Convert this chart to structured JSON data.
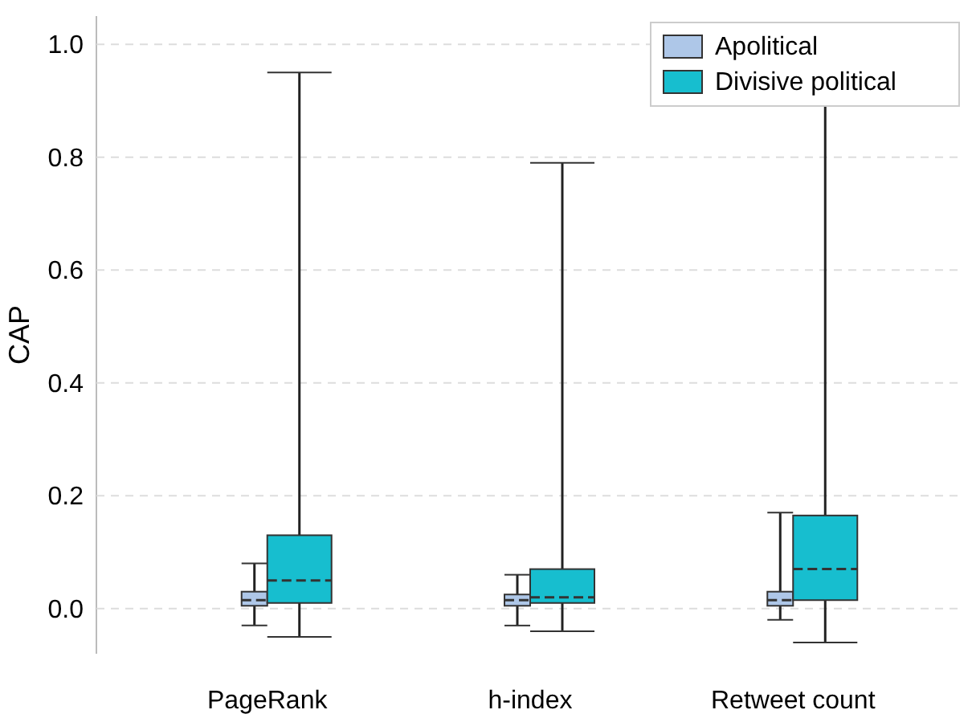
{
  "chart_data": {
    "type": "box",
    "ylabel": "CAP",
    "categories": [
      "PageRank",
      "h-index",
      "Retweet count"
    ],
    "ylim": [
      -0.08,
      1.05
    ],
    "yticks": [
      {
        "value": 0,
        "label": "0.0"
      },
      {
        "value": 0.2,
        "label": "0.2"
      },
      {
        "value": 0.4,
        "label": "0.4"
      },
      {
        "value": 0.6,
        "label": "0.6"
      },
      {
        "value": 0.8,
        "label": "0.8"
      },
      {
        "value": 1,
        "label": "1.0"
      }
    ],
    "grid": "y",
    "legend": "top right",
    "series": [
      {
        "name": "Apolitical",
        "color": "#aec7e8",
        "boxes": [
          {
            "low": -0.03,
            "q1": 0.005,
            "median": 0.015,
            "q3": 0.03,
            "high": 0.08
          },
          {
            "low": -0.03,
            "q1": 0.005,
            "median": 0.015,
            "q3": 0.025,
            "high": 0.06
          },
          {
            "low": -0.02,
            "q1": 0.005,
            "median": 0.015,
            "q3": 0.03,
            "high": 0.17
          }
        ]
      },
      {
        "name": "Divisive political",
        "color": "#17becf",
        "boxes": [
          {
            "low": -0.05,
            "q1": 0.01,
            "median": 0.05,
            "q3": 0.13,
            "high": 0.95
          },
          {
            "low": -0.04,
            "q1": 0.01,
            "median": 0.02,
            "q3": 0.07,
            "high": 0.79
          },
          {
            "low": -0.06,
            "q1": 0.015,
            "median": 0.07,
            "q3": 0.165,
            "high": 1.02
          }
        ]
      }
    ]
  }
}
